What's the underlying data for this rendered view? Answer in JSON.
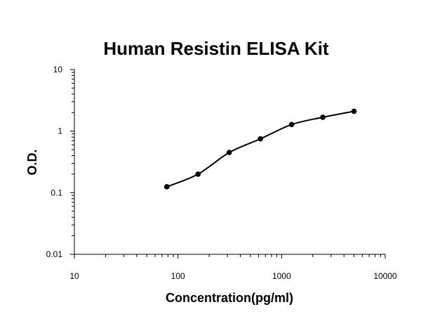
{
  "chart_data": {
    "type": "scatter",
    "title": "Human Resistin ELISA Kit",
    "xlabel": "Concentration(pg/ml)",
    "ylabel": "O.D.",
    "xscale": "log",
    "yscale": "log",
    "xlim": [
      10,
      10000
    ],
    "ylim": [
      0.01,
      10
    ],
    "xticks": [
      "10",
      "100",
      "1000",
      "10000"
    ],
    "yticks": [
      "10",
      "1",
      "0.1",
      "0.01"
    ],
    "grid": false,
    "legend": "none",
    "series": [
      {
        "x": [
          78,
          156,
          312,
          625,
          1250,
          2500,
          5000
        ],
        "y": [
          0.125,
          0.2,
          0.45,
          0.75,
          1.28,
          1.68,
          2.1
        ],
        "marker": "circle",
        "fit_line": "smooth",
        "color": "#000000"
      }
    ]
  }
}
